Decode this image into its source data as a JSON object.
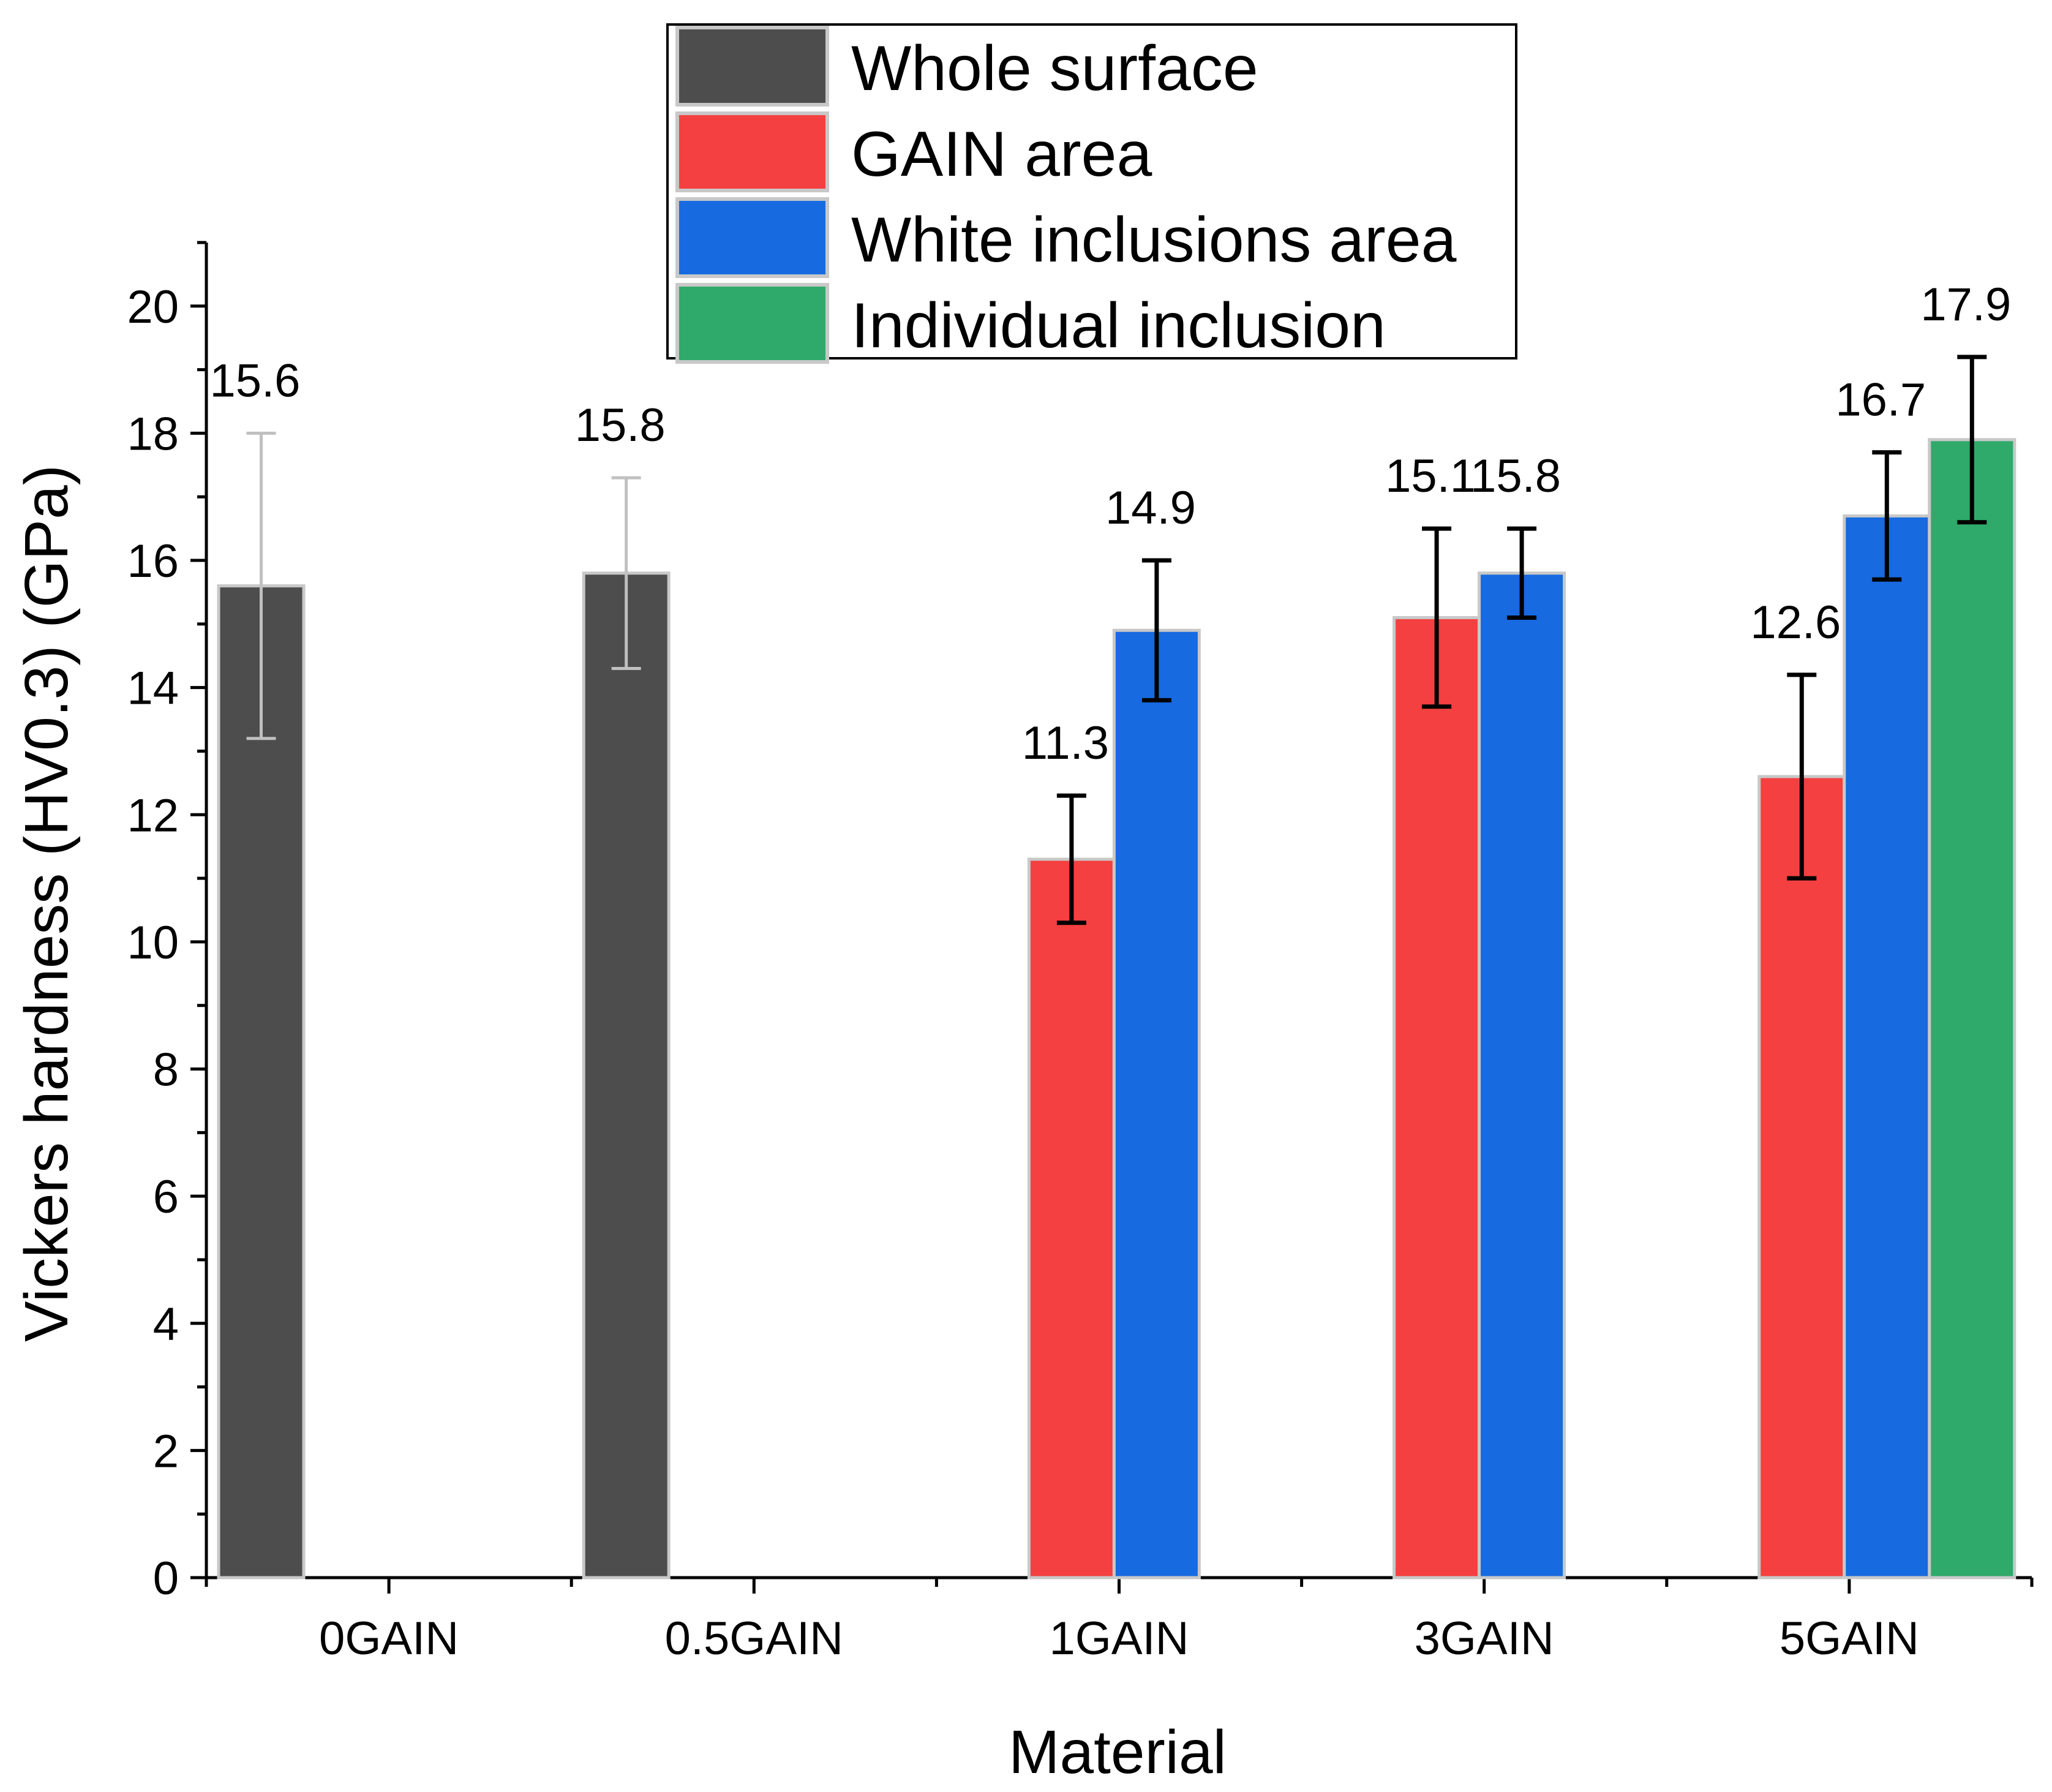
{
  "chart_data": {
    "type": "bar",
    "title": "",
    "xlabel": "Material",
    "ylabel": "Vickers hardness (HV0.3) (GPa)",
    "ylim": [
      0,
      21
    ],
    "yticks": [
      0,
      2,
      4,
      6,
      8,
      10,
      12,
      14,
      16,
      18,
      20
    ],
    "yticks_minor_step": 1,
    "grid": false,
    "categories": [
      "0GAIN",
      "0.5GAIN",
      "1GAIN",
      "3GAIN",
      "5GAIN"
    ],
    "series": [
      {
        "name": "Whole surface",
        "color": "#4d4d4d",
        "error_color": "#c0c0c0",
        "values": [
          15.6,
          15.8,
          null,
          null,
          null
        ],
        "errors": [
          2.4,
          1.5,
          null,
          null,
          null
        ],
        "labels": [
          "15.6",
          "15.8",
          null,
          null,
          null
        ]
      },
      {
        "name": "GAIN area",
        "color": "#f44040",
        "error_color": "#000000",
        "values": [
          null,
          null,
          11.3,
          15.1,
          12.6
        ],
        "errors": [
          null,
          null,
          1.0,
          1.4,
          1.6
        ],
        "labels": [
          null,
          null,
          "11.3",
          "15.1",
          "12.6"
        ]
      },
      {
        "name": "White inclusions area",
        "color": "#176ae0",
        "error_color": "#000000",
        "values": [
          null,
          null,
          14.9,
          15.8,
          16.7
        ],
        "errors": [
          null,
          null,
          1.1,
          0.7,
          1.0
        ],
        "labels": [
          null,
          null,
          "14.9",
          "15.8",
          "16.7"
        ]
      },
      {
        "name": "Individual inclusion",
        "color": "#2faa6a",
        "error_color": "#000000",
        "values": [
          null,
          null,
          null,
          null,
          17.9
        ],
        "errors": [
          null,
          null,
          null,
          null,
          1.3
        ],
        "labels": [
          null,
          null,
          null,
          null,
          "17.9"
        ]
      }
    ],
    "legend": {
      "position": "top-center"
    }
  }
}
